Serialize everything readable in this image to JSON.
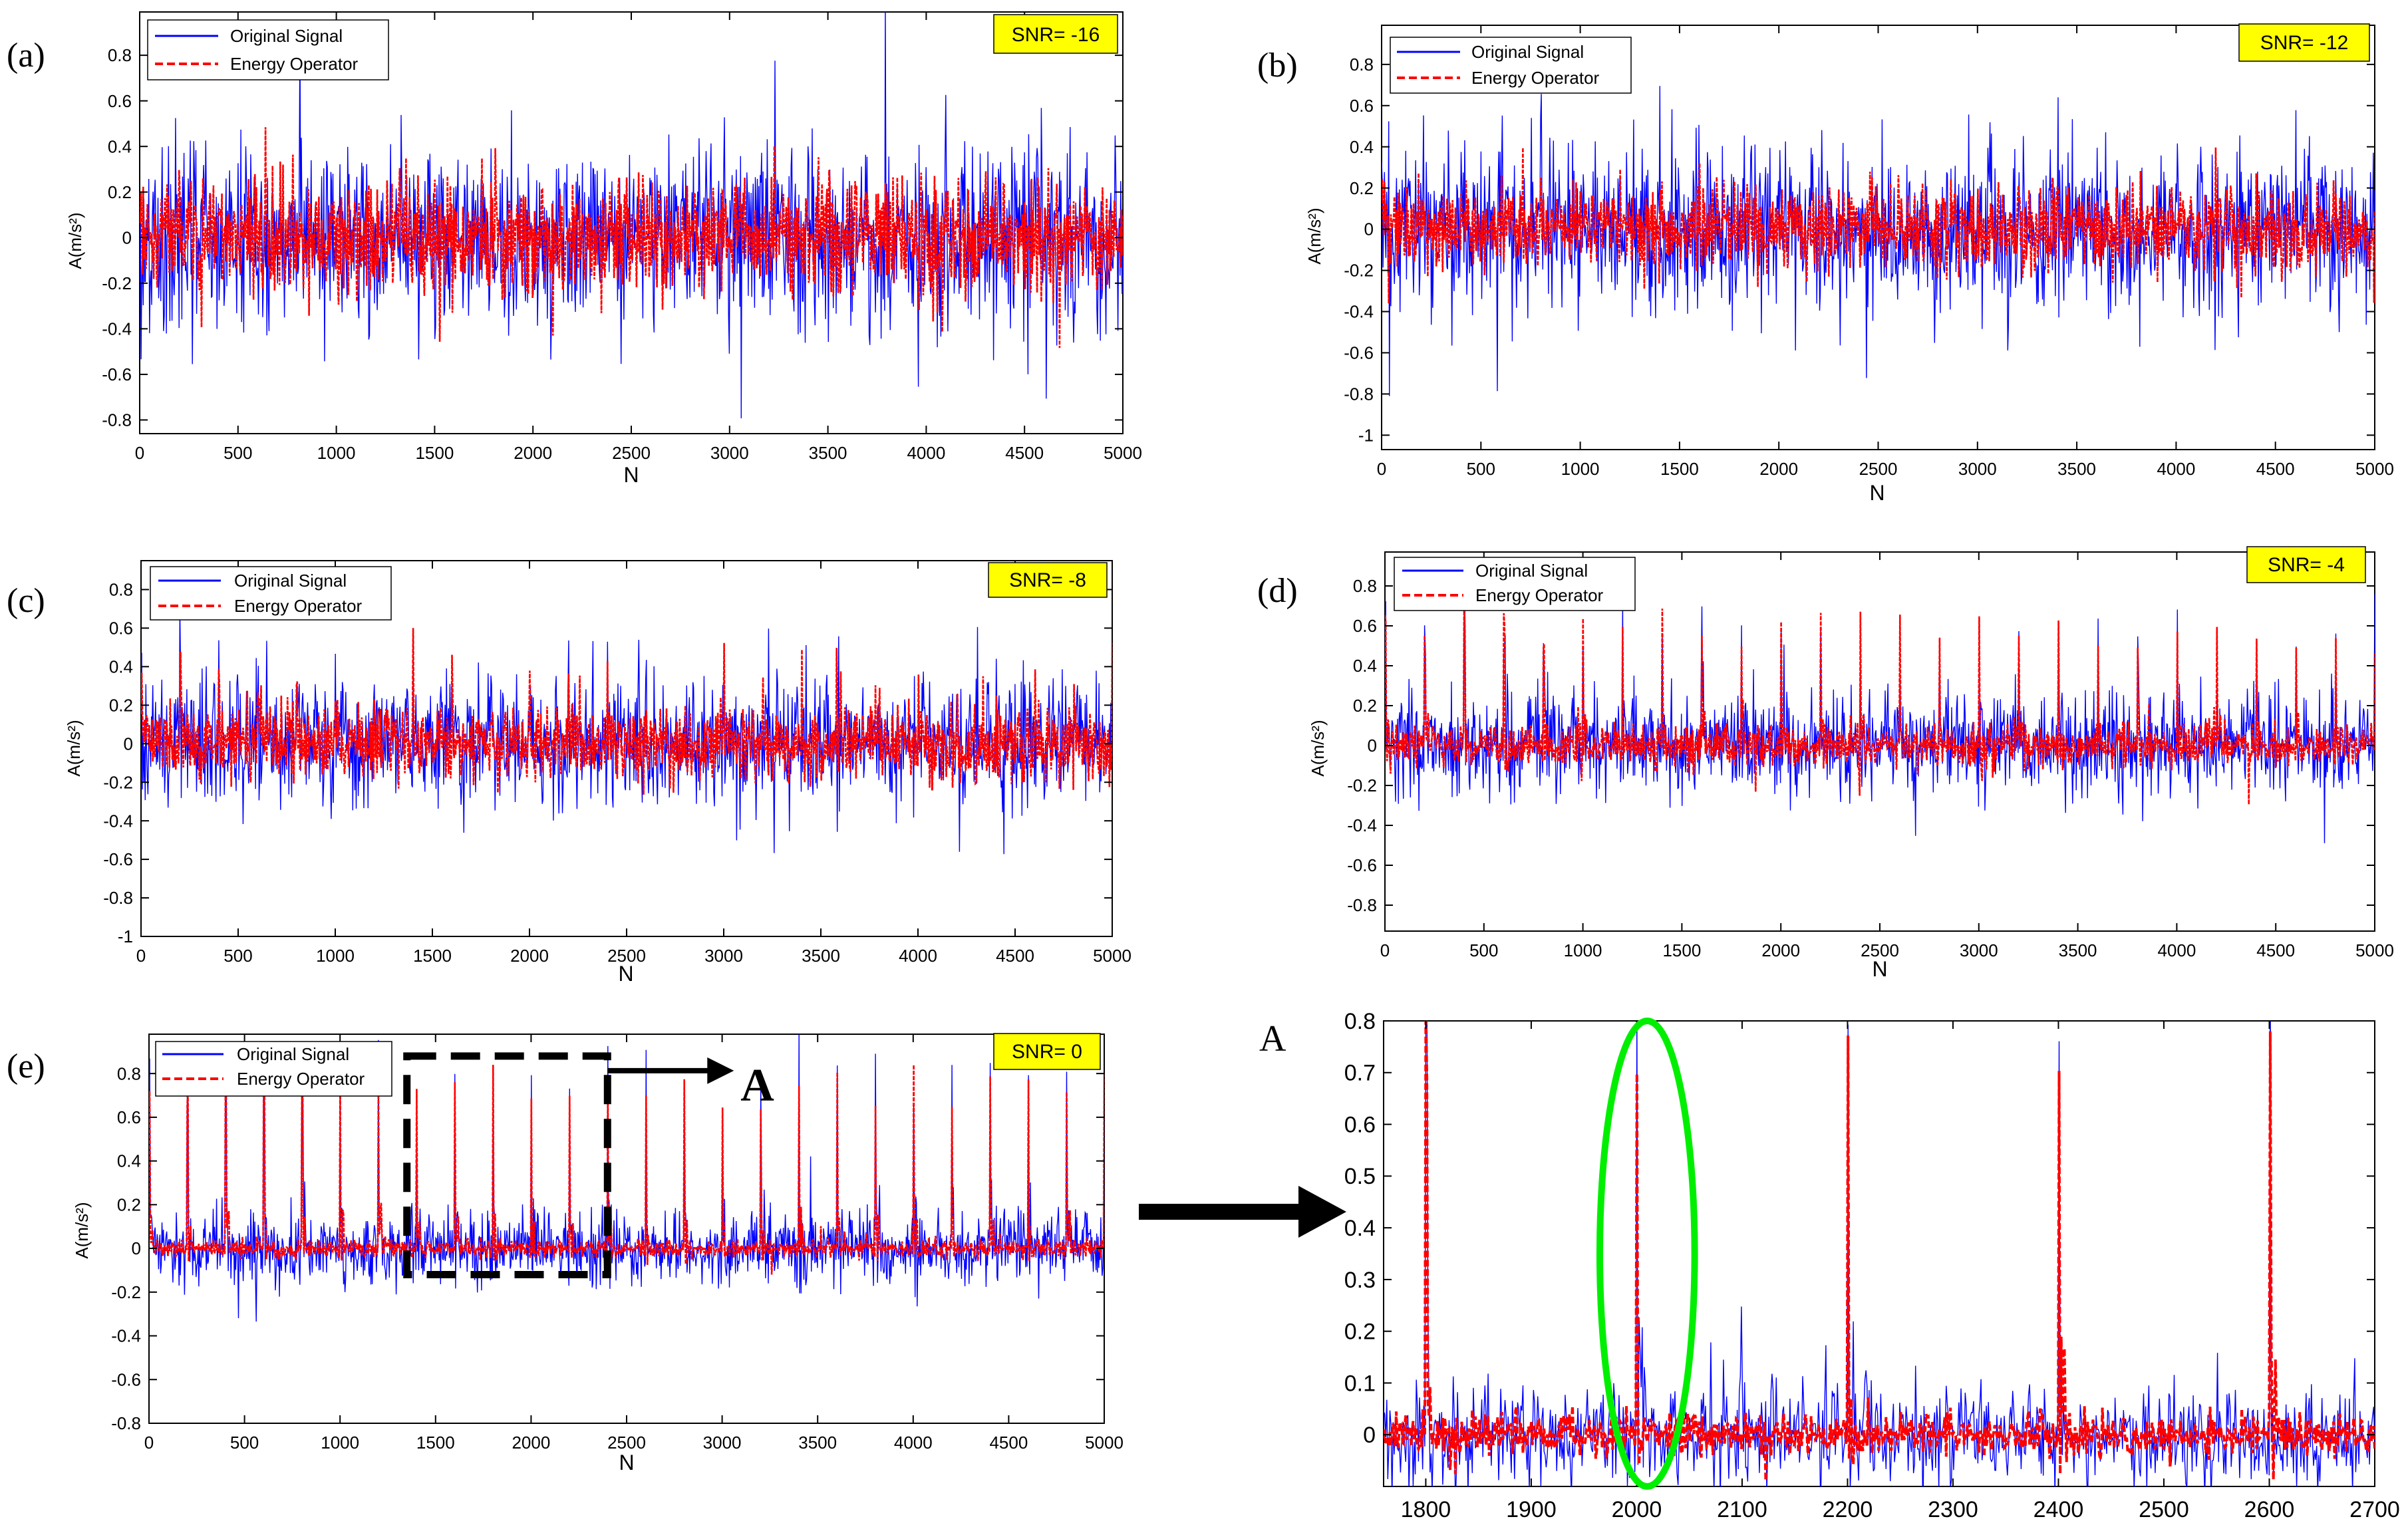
{
  "colors": {
    "original": "#0000ff",
    "energy": "#ff0000",
    "snr_badge": "#ffff00",
    "ellipse": "#00ee00",
    "zoom_box": "#000000"
  },
  "chart_data": [
    {
      "id": "a",
      "type": "line",
      "panel_label": "(a)",
      "snr": "SNR= -16",
      "xlabel": "N",
      "ylabel": "A(m/s²)",
      "xlim": [
        0,
        5000
      ],
      "ylim": [
        -0.86,
        0.99
      ],
      "xticks": [
        0,
        500,
        1000,
        1500,
        2000,
        2500,
        3000,
        3500,
        4000,
        4500,
        5000
      ],
      "yticks": [
        -0.8,
        -0.6,
        -0.4,
        -0.2,
        0,
        0.2,
        0.4,
        0.6,
        0.8
      ],
      "series": [
        {
          "name": "Original Signal",
          "style": "solid",
          "noise_std": 0.2,
          "noise_max": 0.95,
          "impulse_period": 200,
          "impulse_height": 0.08
        },
        {
          "name": "Energy Operator",
          "style": "dashed",
          "noise_std": 0.12,
          "noise_max": 0.85,
          "impulse_period": 200,
          "impulse_height": 0.06
        }
      ]
    },
    {
      "id": "b",
      "type": "line",
      "panel_label": "(b)",
      "snr": "SNR= -12",
      "xlabel": "N",
      "ylabel": "A(m/s²)",
      "xlim": [
        0,
        5000
      ],
      "ylim": [
        -1.07,
        0.99
      ],
      "xticks": [
        0,
        500,
        1000,
        1500,
        2000,
        2500,
        3000,
        3500,
        4000,
        4500,
        5000
      ],
      "yticks": [
        -1,
        -0.8,
        -0.6,
        -0.4,
        -0.2,
        0,
        0.2,
        0.4,
        0.6,
        0.8
      ],
      "series": [
        {
          "name": "Original Signal",
          "style": "solid",
          "noise_std": 0.2,
          "noise_max": 1.0,
          "impulse_period": 200,
          "impulse_height": 0.15
        },
        {
          "name": "Energy Operator",
          "style": "dashed",
          "noise_std": 0.1,
          "noise_max": 0.7,
          "impulse_period": 200,
          "impulse_height": 0.12
        }
      ]
    },
    {
      "id": "c",
      "type": "line",
      "panel_label": "(c)",
      "snr": "SNR= -8",
      "xlabel": "N",
      "ylabel": "A(m/s²)",
      "xlim": [
        0,
        5000
      ],
      "ylim": [
        -1.0,
        0.95
      ],
      "xticks": [
        0,
        500,
        1000,
        1500,
        2000,
        2500,
        3000,
        3500,
        4000,
        4500,
        5000
      ],
      "yticks": [
        -1,
        -0.8,
        -0.6,
        -0.4,
        -0.2,
        0,
        0.2,
        0.4,
        0.6,
        0.8
      ],
      "series": [
        {
          "name": "Original Signal",
          "style": "solid",
          "noise_std": 0.16,
          "noise_max": 0.7,
          "impulse_period": 200,
          "impulse_height": 0.3
        },
        {
          "name": "Energy Operator",
          "style": "dashed",
          "noise_std": 0.09,
          "noise_max": 0.6,
          "impulse_period": 200,
          "impulse_height": 0.35
        }
      ]
    },
    {
      "id": "d",
      "type": "line",
      "panel_label": "(d)",
      "snr": "SNR= -4",
      "xlabel": "N",
      "ylabel": "A(m/s²)",
      "xlim": [
        0,
        5000
      ],
      "ylim": [
        -0.93,
        0.97
      ],
      "xticks": [
        0,
        500,
        1000,
        1500,
        2000,
        2500,
        3000,
        3500,
        4000,
        4500,
        5000
      ],
      "yticks": [
        -0.8,
        -0.6,
        -0.4,
        -0.2,
        0,
        0.2,
        0.4,
        0.6,
        0.8
      ],
      "series": [
        {
          "name": "Original Signal",
          "style": "solid",
          "noise_std": 0.13,
          "noise_max": 0.6,
          "impulse_period": 200,
          "impulse_height": 0.55
        },
        {
          "name": "Energy Operator",
          "style": "dashed",
          "noise_std": 0.05,
          "noise_max": 0.3,
          "impulse_period": 200,
          "impulse_height": 0.6
        }
      ]
    },
    {
      "id": "e",
      "type": "line",
      "panel_label": "(e)",
      "snr": "SNR= 0",
      "xlabel": "N",
      "ylabel": "A(m/s²)",
      "xlim": [
        0,
        5000
      ],
      "ylim": [
        -0.8,
        0.98
      ],
      "xticks": [
        0,
        500,
        1000,
        1500,
        2000,
        2500,
        3000,
        3500,
        4000,
        4500,
        5000
      ],
      "yticks": [
        -0.8,
        -0.6,
        -0.4,
        -0.2,
        0,
        0.2,
        0.4,
        0.6,
        0.8
      ],
      "zoom_region": {
        "x": [
          1350,
          2400
        ],
        "y": [
          -0.12,
          0.88
        ],
        "label": "A"
      },
      "series": [
        {
          "name": "Original Signal",
          "style": "solid",
          "noise_std": 0.08,
          "noise_max": 0.45,
          "impulse_period": 200,
          "impulse_height": 0.8
        },
        {
          "name": "Energy Operator",
          "style": "dashed",
          "noise_std": 0.02,
          "noise_max": 0.12,
          "impulse_period": 200,
          "impulse_height": 0.72
        }
      ]
    },
    {
      "id": "zoom",
      "type": "line",
      "panel_label": "A",
      "xlabel": "",
      "ylabel": "",
      "xlim": [
        1760,
        2700
      ],
      "ylim": [
        -0.1,
        0.8
      ],
      "xticks": [
        1800,
        1900,
        2000,
        2100,
        2200,
        2300,
        2400,
        2500,
        2600,
        2700
      ],
      "xtick_labels": [
        "1800",
        "1900",
        "2000",
        "2100",
        "2200",
        "2300",
        "2400",
        "2500",
        "2600",
        "2700"
      ],
      "yticks": [
        0,
        0.1,
        0.2,
        0.3,
        0.4,
        0.5,
        0.6,
        0.7,
        0.8
      ],
      "annotation": {
        "type": "ellipse",
        "center_x": 2010,
        "center_y": 0.35,
        "rx": 45,
        "ry": 0.45
      },
      "series": [
        {
          "name": "Original Signal",
          "style": "solid",
          "noise_std": 0.05,
          "noise_max": 0.3,
          "impulse_period": 200,
          "impulse_height": 0.8
        },
        {
          "name": "Energy Operator",
          "style": "dashed",
          "noise_std": 0.02,
          "noise_max": 0.1,
          "impulse_period": 200,
          "impulse_height": 0.74
        }
      ]
    }
  ]
}
